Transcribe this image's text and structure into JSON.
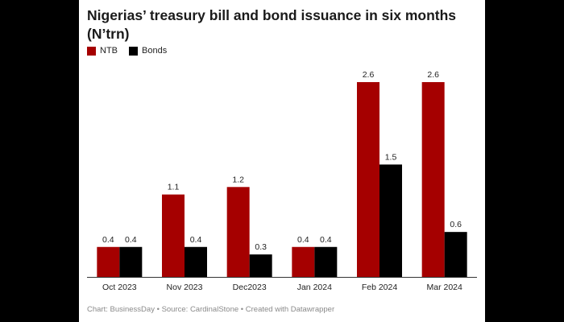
{
  "chart_data": {
    "type": "bar",
    "title": "Nigerias’ treasury bill and bond issuance in six months (N’trn)",
    "categories": [
      "Oct 2023",
      "Nov 2023",
      "Dec2023",
      "Jan 2024",
      "Feb 2024",
      "Mar 2024"
    ],
    "series": [
      {
        "name": "NTB",
        "color": "#a50000",
        "values": [
          0.4,
          1.1,
          1.2,
          0.4,
          2.6,
          2.6
        ]
      },
      {
        "name": "Bonds",
        "color": "#000000",
        "values": [
          0.4,
          0.4,
          0.3,
          0.4,
          1.5,
          0.6
        ]
      }
    ],
    "value_labels": {
      "NTB": [
        "0.4",
        "1.1",
        "1.2",
        "0.4",
        "2.6",
        "2.6"
      ],
      "Bonds": [
        "0.4",
        "0.4",
        "0.3",
        "0.4",
        "1.5",
        "0.6"
      ]
    },
    "ylim": [
      0,
      2.6
    ],
    "xlabel": "",
    "ylabel": "",
    "grid": false,
    "legend_position": "top-left"
  },
  "footer": {
    "chart_credit": "Chart: BusinessDay",
    "source": "Source: CardinalStone",
    "created_with": "Created with Datawrapper",
    "separator": " • "
  }
}
